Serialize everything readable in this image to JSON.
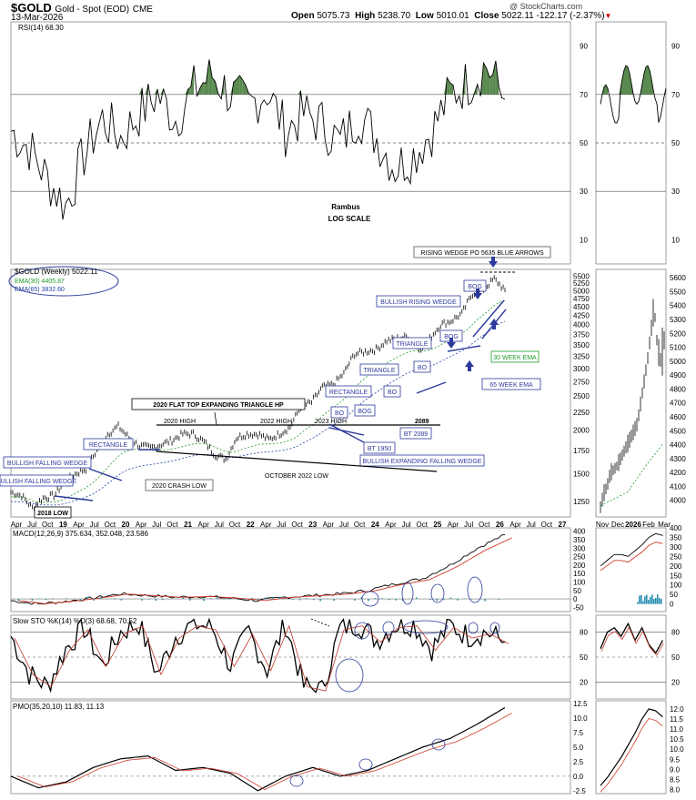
{
  "header": {
    "symbol": "$GOLD",
    "name": "Gold - Spot (EOD)",
    "exchange": "CME",
    "date": "13-Mar-2026",
    "ohlc": {
      "open_label": "Open",
      "open": "5075.73",
      "high_label": "High",
      "high": "5238.70",
      "low_label": "Low",
      "low": "5010.01",
      "close_label": "Close",
      "close": "5022.11",
      "change": "-122.17 (-2.37%)"
    },
    "watermark": "@ StockCharts.com"
  },
  "colors": {
    "price": "#000000",
    "ema30": "#1f9a2a",
    "ema65": "#1f3fa8",
    "annot": "#2b3a9c",
    "rsi_fill": "#5a8a50",
    "macd_signal": "#d03a2a",
    "hist": "#2a8fb0",
    "sto_d": "#c0392b",
    "pmo_signal": "#d03a2a"
  },
  "chart_data": [
    {
      "id": "rsi",
      "type": "line",
      "title": "RSI(14) 68.30",
      "y_ticks": [
        "90",
        "70",
        "50",
        "30",
        "10"
      ],
      "ylim": [
        0,
        100
      ],
      "levels": [
        70,
        50,
        30
      ],
      "x": [
        0,
        4,
        8,
        12,
        16,
        20,
        24,
        28,
        32,
        36,
        40,
        44,
        48,
        52,
        56,
        60,
        64,
        68,
        72,
        76,
        80,
        84,
        88,
        92,
        96,
        100,
        104,
        108
      ],
      "values": [
        55,
        48,
        35,
        24,
        45,
        60,
        52,
        62,
        70,
        60,
        72,
        78,
        70,
        65,
        72,
        55,
        62,
        58,
        50,
        62,
        52,
        40,
        45,
        55,
        70,
        75,
        82,
        68
      ],
      "annotations": [
        "Rambus",
        "LOG SCALE"
      ]
    },
    {
      "id": "price",
      "type": "line",
      "title": "$GOLD (Weekly) 5022.11",
      "legend": [
        "EMA(30) 4405.87",
        "EMA(65) 3832.60"
      ],
      "y_ticks": [
        "5500",
        "5250",
        "5000",
        "4750",
        "4500",
        "4250",
        "4000",
        "3750",
        "3500",
        "3250",
        "3000",
        "2750",
        "2500",
        "2250",
        "2000",
        "1750",
        "1500",
        "1250"
      ],
      "y_tick_values": [
        5500,
        5250,
        5000,
        4750,
        4500,
        4250,
        4000,
        3750,
        3500,
        3250,
        3000,
        2750,
        2500,
        2250,
        2000,
        1750,
        1500,
        1250
      ],
      "log_scale": true,
      "x_labels": [
        "Apr",
        "Jul",
        "Oct",
        "19",
        "Apr",
        "Jul",
        "Oct",
        "20",
        "Apr",
        "Jul",
        "Oct",
        "21",
        "Apr",
        "Jul",
        "Oct",
        "22",
        "Apr",
        "Jul",
        "Oct",
        "23",
        "Apr",
        "Jul",
        "Oct",
        "24",
        "Apr",
        "Jul",
        "Oct",
        "25",
        "Apr",
        "Jul",
        "Oct",
        "26",
        "Apr",
        "Jul",
        "Oct",
        "27"
      ],
      "x": [
        0,
        3,
        6,
        9,
        12,
        15,
        18,
        21,
        24,
        27,
        30,
        33,
        36,
        39,
        42,
        45,
        48,
        51,
        54,
        57,
        60,
        63,
        66,
        69,
        72,
        75,
        78,
        81,
        84,
        87,
        90,
        93,
        96,
        99,
        102,
        105
      ],
      "values": [
        1330,
        1300,
        1200,
        1280,
        1300,
        1420,
        1500,
        1550,
        1750,
        1950,
        2050,
        1900,
        1800,
        1780,
        1820,
        1870,
        1950,
        1950,
        1850,
        1700,
        1650,
        1900,
        1950,
        1950,
        1880,
        1950,
        2040,
        2330,
        2400,
        2650,
        2700,
        2900,
        3300,
        3350,
        3400,
        3600
      ],
      "ext_values": [
        3650,
        3700,
        3400,
        3650,
        4000,
        4100,
        4300,
        4900,
        5050,
        5400,
        5022
      ],
      "annotations": [
        "RISING WEDGE PO 5635 BLUE ARROWS",
        "BULLISH RISING WEDGE",
        "BOG",
        "BOG",
        "TRIANGLE",
        "BO",
        "TRIANGLE",
        "30 WEEK EMA",
        "65 WEEK EMA",
        "RECTANGLE",
        "BO",
        "BOG",
        "BO",
        "2089",
        "BT 2089",
        "BT 1950",
        "BULLISH EXPANDING FALLING WEDGE",
        "2020 FLAT TOP EXPANDING TRIANGLE HP",
        "2020 HIGH",
        "2022 HIGH",
        "2023 HIGH",
        "OCTOBER 2022 LOW",
        "RECTANGLE",
        "BULLISH FALLING WEDGE",
        "BULLISH FALLING WEDGE",
        "2020 CRASH LOW",
        "2018 LOW"
      ]
    },
    {
      "id": "price_daily",
      "type": "line",
      "y_ticks": [
        "5600",
        "5500",
        "5400",
        "5300",
        "5200",
        "5100",
        "5000",
        "4900",
        "4800",
        "4700",
        "4600",
        "4500",
        "4400",
        "4300",
        "4200",
        "4100",
        "4000"
      ],
      "x_labels": [
        "Nov",
        "Dec",
        "2026",
        "Feb",
        "Mar"
      ],
      "x": [
        0,
        1,
        2,
        3,
        4,
        5,
        6,
        7,
        8,
        9,
        10,
        11,
        12,
        13,
        14,
        15,
        16,
        17,
        18,
        19
      ],
      "values": [
        3950,
        4050,
        4100,
        4200,
        4220,
        4250,
        4300,
        4350,
        4400,
        4450,
        4500,
        4550,
        4700,
        4850,
        5000,
        5200,
        5400,
        5100,
        5000,
        5150
      ]
    },
    {
      "id": "macd",
      "type": "line",
      "title": "MACD(12,26,9) 375.634, 352.048, 23.586",
      "y_ticks": [
        "400",
        "350",
        "300",
        "250",
        "200",
        "150",
        "100",
        "50",
        "0",
        "-50"
      ],
      "ylim": [
        -75,
        420
      ],
      "x": [
        0,
        6,
        12,
        18,
        24,
        30,
        36,
        42,
        48,
        54,
        60,
        66,
        72,
        78,
        84,
        90,
        96,
        102,
        108
      ],
      "values": [
        -10,
        -30,
        -15,
        5,
        30,
        20,
        10,
        15,
        5,
        -10,
        10,
        20,
        30,
        50,
        90,
        120,
        200,
        300,
        380
      ]
    },
    {
      "id": "macd_daily",
      "type": "line",
      "y_ticks": [
        "400",
        "350",
        "300",
        "250",
        "200",
        "150",
        "100",
        "50",
        "0"
      ],
      "x": [
        0,
        2,
        4,
        6,
        8,
        10,
        12,
        14,
        16,
        18
      ],
      "values": [
        200,
        230,
        260,
        260,
        250,
        280,
        310,
        350,
        370,
        360
      ]
    },
    {
      "id": "sto",
      "type": "line",
      "title": "Slow STO %K(14) %D(3) 68.68, 70.52",
      "y_ticks": [
        "80",
        "50",
        "20"
      ],
      "ylim": [
        0,
        100
      ],
      "levels": [
        80,
        50,
        20
      ],
      "x": [
        0,
        4,
        8,
        12,
        16,
        20,
        24,
        28,
        32,
        36,
        40,
        44,
        48,
        52,
        56,
        60,
        64,
        68,
        72,
        76,
        80,
        84,
        88,
        92,
        96,
        100,
        104,
        108
      ],
      "values": [
        75,
        30,
        15,
        60,
        85,
        40,
        80,
        90,
        30,
        75,
        90,
        85,
        40,
        80,
        35,
        90,
        15,
        10,
        85,
        90,
        70,
        88,
        90,
        60,
        88,
        75,
        80,
        68
      ]
    },
    {
      "id": "sto_daily",
      "type": "line",
      "y_ticks": [
        "80",
        "50",
        "20"
      ],
      "x": [
        0,
        2,
        4,
        6,
        8,
        10,
        12,
        14,
        16,
        18
      ],
      "values": [
        60,
        80,
        85,
        75,
        90,
        70,
        85,
        65,
        55,
        70
      ]
    },
    {
      "id": "pmo",
      "type": "line",
      "title": "PMO(35,20,10) 11.83, 11.13",
      "y_ticks": [
        "12.5",
        "10.0",
        "7.5",
        "5.0",
        "2.5",
        "0.0",
        "-2.5"
      ],
      "ylim": [
        -3,
        13
      ],
      "x": [
        0,
        6,
        12,
        18,
        24,
        30,
        36,
        42,
        48,
        54,
        60,
        66,
        72,
        78,
        84,
        90,
        96,
        102,
        108
      ],
      "values": [
        0,
        -2,
        -1,
        1.5,
        3,
        3.5,
        1,
        1.5,
        0.5,
        -2.5,
        0,
        1.5,
        0,
        1,
        3,
        5,
        6.5,
        9,
        11.83
      ]
    },
    {
      "id": "pmo_daily",
      "type": "line",
      "y_ticks": [
        "12.0",
        "11.5",
        "11.0",
        "10.5",
        "10.0",
        "9.5",
        "9.0",
        "8.5",
        "8.0"
      ],
      "x": [
        0,
        2,
        4,
        6,
        8,
        10,
        12,
        14,
        16,
        18
      ],
      "values": [
        8.2,
        8.6,
        9.1,
        9.6,
        10.2,
        10.8,
        11.5,
        12,
        11.9,
        11.6
      ]
    }
  ]
}
